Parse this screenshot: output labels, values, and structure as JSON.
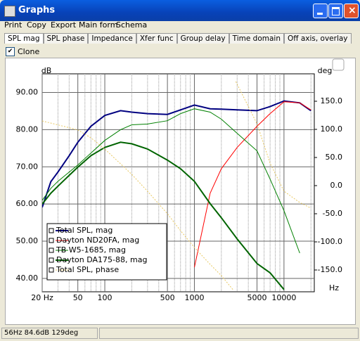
{
  "window": {
    "title": "Graphs"
  },
  "menu": [
    "Print",
    "Copy",
    "Export",
    "Main form",
    "Schema"
  ],
  "tabs": [
    "SPL mag",
    "SPL phase",
    "Impedance",
    "Xfer func",
    "Group delay",
    "Time domain",
    "Off axis, overlay"
  ],
  "clone": {
    "label": "Clone",
    "checked": true
  },
  "status": "56Hz 84.6dB 129deg",
  "chart_data": {
    "type": "line",
    "ylabel": "dB",
    "y2label": "deg",
    "xlabel": "Hz",
    "xlog": true,
    "grid": true,
    "xlim": [
      20,
      21800
    ],
    "ylim": [
      36.4,
      95
    ],
    "y2lim": [
      -188.75,
      198.75
    ],
    "xticks": [
      {
        "value": 20,
        "label": "20 Hz"
      },
      50,
      100,
      500,
      1000,
      5000,
      10000
    ],
    "xminor_ticks": [
      30,
      40,
      60,
      70,
      80,
      90,
      200,
      300,
      400,
      600,
      700,
      800,
      900,
      2000,
      3000,
      4000,
      6000,
      7000,
      8000,
      9000,
      20000
    ],
    "yticks": [
      {
        "value": 40,
        "label": "40.00"
      },
      {
        "value": 50,
        "label": "50.00"
      },
      {
        "value": 60,
        "label": "60.00"
      },
      {
        "value": 70,
        "label": "70.00"
      },
      {
        "value": 80,
        "label": "80.00"
      },
      {
        "value": 90,
        "label": "90.00"
      }
    ],
    "y2ticks": [
      {
        "value": -150,
        "label": "-150.0"
      },
      {
        "value": -100,
        "label": "-100.0"
      },
      {
        "value": -50,
        "label": "-50.0"
      },
      {
        "value": 0,
        "label": "0.0"
      },
      {
        "value": 50,
        "label": "50.0"
      },
      {
        "value": 100,
        "label": "100.0"
      },
      {
        "value": 150,
        "label": "150.0"
      }
    ],
    "x": [
      20,
      25,
      30,
      40,
      50,
      70,
      100,
      150,
      200,
      300,
      500,
      700,
      1000,
      1500,
      2000,
      3000,
      5000,
      7000,
      10000,
      15000,
      20000
    ],
    "series": [
      {
        "name": "Total SPL, mag",
        "color": "#000080",
        "width": 2,
        "values": [
          59.1,
          66,
          68.6,
          73,
          76.6,
          80.9,
          83.8,
          85.1,
          84.7,
          84.3,
          84.1,
          85.3,
          86.6,
          85.6,
          85.5,
          85.3,
          85.1,
          86.2,
          87.7,
          87.2,
          85.1
        ]
      },
      {
        "name": "Dayton ND20FA, mag",
        "color": "#ff0000",
        "width": 1,
        "values": [
          null,
          null,
          null,
          null,
          null,
          null,
          null,
          null,
          null,
          null,
          null,
          null,
          43,
          62.9,
          69.5,
          75.2,
          80.9,
          84.3,
          87.5,
          87.2,
          85.3
        ]
      },
      {
        "name": "TB W5-1685, mag",
        "color": "#008000",
        "width": 1,
        "values": [
          61,
          64.2,
          66.1,
          68.6,
          70.5,
          73.7,
          77.1,
          80,
          81.3,
          81.5,
          82.4,
          84.3,
          85.6,
          84.7,
          82.8,
          79,
          74.3,
          66.7,
          58.2,
          46.8,
          null
        ]
      },
      {
        "name": "Dayton DA175-88, mag",
        "color": "#006400",
        "width": 2,
        "values": [
          60,
          62.9,
          64.8,
          67.7,
          69.9,
          73,
          75.2,
          76.6,
          76.2,
          74.8,
          71.8,
          69.5,
          66.1,
          60.1,
          56.3,
          50.6,
          44,
          41.5,
          37,
          null,
          null
        ]
      },
      {
        "name": "Total SPL, phase",
        "color": "#e8c860",
        "width": 1,
        "dash": true,
        "axis": "y2",
        "x": [
          20,
          30,
          50,
          70,
          100,
          200,
          300,
          500,
          700,
          1000,
          1500,
          2000,
          2700,
          2800,
          2900,
          5000,
          7000,
          10000,
          15000,
          20000
        ],
        "values": [
          115,
          108,
          99,
          85,
          65,
          20,
          -10,
          -50,
          -80,
          -110,
          -140,
          -160,
          -185,
          null,
          185,
          110,
          40,
          -10,
          -30,
          -40
        ]
      }
    ]
  }
}
